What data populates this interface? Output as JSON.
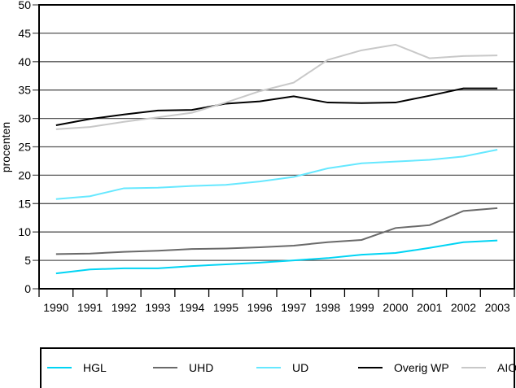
{
  "chart_data": {
    "type": "line",
    "title": "",
    "xlabel": "",
    "ylabel": "procenten",
    "ylim": [
      0,
      50
    ],
    "yticks": [
      0,
      5,
      10,
      15,
      20,
      25,
      30,
      35,
      40,
      45,
      50
    ],
    "grid": true,
    "legend_position": "bottom",
    "x": [
      "1990",
      "1991",
      "1992",
      "1993",
      "1994",
      "1995",
      "1996",
      "1997",
      "1998",
      "1999",
      "2000",
      "2001",
      "2002",
      "2003"
    ],
    "series": [
      {
        "name": "HGL",
        "color": "#00d4f4",
        "values": [
          2.7,
          3.4,
          3.6,
          3.6,
          4.0,
          4.3,
          4.6,
          5.0,
          5.4,
          6.0,
          6.3,
          7.2,
          8.2,
          8.5
        ]
      },
      {
        "name": "UHD",
        "color": "#6a6a6a",
        "values": [
          6.1,
          6.2,
          6.5,
          6.7,
          7.0,
          7.1,
          7.3,
          7.6,
          8.2,
          8.6,
          10.7,
          11.2,
          13.7,
          14.2
        ]
      },
      {
        "name": "UD",
        "color": "#66e8ff",
        "values": [
          15.8,
          16.3,
          17.7,
          17.8,
          18.1,
          18.3,
          18.9,
          19.7,
          21.2,
          22.1,
          22.4,
          22.7,
          23.3,
          24.5
        ]
      },
      {
        "name": "Overig WP",
        "color": "#000000",
        "values": [
          28.8,
          29.9,
          30.7,
          31.4,
          31.5,
          32.6,
          33.0,
          33.9,
          32.8,
          32.7,
          32.8,
          34.0,
          35.3,
          35.3
        ]
      },
      {
        "name": "AIO's",
        "color": "#c8c8c8",
        "values": [
          28.1,
          28.5,
          29.4,
          30.2,
          31.0,
          32.8,
          34.8,
          36.3,
          40.3,
          42.0,
          43.0,
          40.6,
          41.0,
          41.1
        ]
      }
    ]
  }
}
